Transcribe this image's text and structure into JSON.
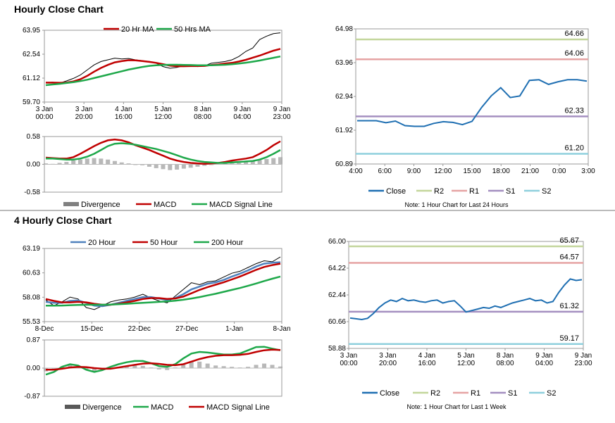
{
  "sections": {
    "hourly_title": "Hourly Close Chart",
    "four_hourly_title": "4 Hourly Close Chart"
  },
  "chart_data": [
    {
      "id": "hourly-price",
      "type": "line",
      "x_ticks": [
        "3 Jan\n00:00",
        "3 Jan\n20:00",
        "4 Jan\n16:00",
        "5 Jan\n12:00",
        "8 Jan\n08:00",
        "9 Jan\n04:00",
        "9 Jan\n23:00"
      ],
      "y_ticks": [
        "63.95",
        "62.54",
        "61.12",
        "59.70"
      ],
      "ylim": [
        59.7,
        63.95
      ],
      "legend": [
        "20 Hr MA",
        "50 Hrs MA"
      ],
      "series": [
        {
          "name": "Close",
          "color": "#000000",
          "values": [
            60.85,
            60.88,
            60.82,
            60.95,
            61.1,
            61.3,
            61.6,
            61.9,
            62.1,
            62.2,
            62.3,
            62.25,
            62.28,
            62.2,
            62.15,
            62.1,
            62.0,
            61.8,
            61.7,
            61.75,
            61.85,
            61.9,
            61.8,
            61.85,
            62.0,
            62.05,
            62.1,
            62.2,
            62.4,
            62.7,
            62.9,
            63.4,
            63.6,
            63.75,
            63.8
          ]
        },
        {
          "name": "20 Hr MA",
          "color": "#c00000",
          "values": [
            60.85,
            60.85,
            60.84,
            60.86,
            60.92,
            61.05,
            61.25,
            61.5,
            61.72,
            61.9,
            62.05,
            62.12,
            62.18,
            62.17,
            62.13,
            62.08,
            62.02,
            61.94,
            61.86,
            61.82,
            61.82,
            61.83,
            61.83,
            61.84,
            61.89,
            61.93,
            61.98,
            62.02,
            62.1,
            62.2,
            62.33,
            62.45,
            62.6,
            62.74,
            62.85
          ]
        },
        {
          "name": "50 Hrs MA",
          "color": "#1ea84a",
          "values": [
            60.7,
            60.74,
            60.78,
            60.83,
            60.88,
            60.94,
            61.02,
            61.12,
            61.22,
            61.32,
            61.42,
            61.52,
            61.62,
            61.7,
            61.78,
            61.84,
            61.88,
            61.9,
            61.91,
            61.91,
            61.9,
            61.89,
            61.88,
            61.88,
            61.88,
            61.89,
            61.91,
            61.94,
            61.98,
            62.03,
            62.09,
            62.16,
            62.24,
            62.32,
            62.4
          ]
        }
      ]
    },
    {
      "id": "hourly-macd",
      "type": "line",
      "y_ticks": [
        "0.58",
        "0.00",
        "-0.58"
      ],
      "ylim": [
        -0.58,
        0.58
      ],
      "legend": [
        "Divergence",
        "MACD",
        "MACD Signal Line"
      ],
      "divergence": [
        0.02,
        0.01,
        0.03,
        0.05,
        0.08,
        0.1,
        0.12,
        0.13,
        0.12,
        0.1,
        0.07,
        0.04,
        0.02,
        0.0,
        -0.02,
        -0.05,
        -0.08,
        -0.1,
        -0.12,
        -0.11,
        -0.09,
        -0.07,
        -0.05,
        -0.03,
        -0.01,
        0.01,
        0.02,
        0.02,
        0.03,
        0.05,
        0.07,
        0.09,
        0.11,
        0.13,
        0.15
      ],
      "series": [
        {
          "name": "MACD",
          "color": "#c00000",
          "values": [
            0.14,
            0.13,
            0.12,
            0.12,
            0.15,
            0.22,
            0.3,
            0.38,
            0.45,
            0.5,
            0.52,
            0.5,
            0.46,
            0.4,
            0.35,
            0.3,
            0.24,
            0.18,
            0.12,
            0.08,
            0.05,
            0.03,
            0.02,
            0.01,
            0.02,
            0.03,
            0.05,
            0.08,
            0.1,
            0.12,
            0.15,
            0.22,
            0.3,
            0.4,
            0.48
          ]
        },
        {
          "name": "MACD Signal Line",
          "color": "#1ea84a",
          "values": [
            0.12,
            0.12,
            0.11,
            0.1,
            0.1,
            0.12,
            0.16,
            0.22,
            0.3,
            0.38,
            0.43,
            0.44,
            0.43,
            0.41,
            0.38,
            0.35,
            0.32,
            0.28,
            0.24,
            0.19,
            0.14,
            0.1,
            0.07,
            0.05,
            0.04,
            0.03,
            0.03,
            0.04,
            0.05,
            0.06,
            0.07,
            0.1,
            0.15,
            0.22,
            0.3
          ]
        }
      ]
    },
    {
      "id": "hourly-levels",
      "type": "line",
      "x_ticks": [
        "4:00",
        "6:00",
        "9:00",
        "12:00",
        "15:00",
        "18:00",
        "21:00",
        "0:00",
        "3:00"
      ],
      "y_ticks": [
        "64.98",
        "63.96",
        "62.94",
        "61.92",
        "60.89"
      ],
      "ylim": [
        60.89,
        64.98
      ],
      "levels": [
        {
          "name": "R2",
          "value": 64.66,
          "label": "64.66",
          "color": "#c3d69b"
        },
        {
          "name": "R1",
          "value": 64.06,
          "label": "64.06",
          "color": "#e6a4a4"
        },
        {
          "name": "S1",
          "value": 62.33,
          "label": "62.33",
          "color": "#a48fc0"
        },
        {
          "name": "S2",
          "value": 61.2,
          "label": "61.20",
          "color": "#8fd0dd"
        }
      ],
      "series": [
        {
          "name": "Close",
          "color": "#1f6fb2",
          "values": [
            62.2,
            62.2,
            62.2,
            62.14,
            62.19,
            62.05,
            62.03,
            62.03,
            62.12,
            62.17,
            62.15,
            62.08,
            62.18,
            62.6,
            62.95,
            63.2,
            62.9,
            62.95,
            63.42,
            63.44,
            63.3,
            63.38,
            63.44,
            63.44,
            63.4
          ]
        }
      ],
      "legend": [
        "Close",
        "R2",
        "R1",
        "S1",
        "S2"
      ],
      "note": "Note: 1 Hour Chart for Last 24 Hours"
    },
    {
      "id": "four-hourly-price",
      "type": "line",
      "x_ticks": [
        "8-Dec",
        "15-Dec",
        "22-Dec",
        "27-Dec",
        "1-Jan",
        "8-Jan"
      ],
      "y_ticks": [
        "63.19",
        "60.63",
        "58.08",
        "55.53"
      ],
      "ylim": [
        55.53,
        63.19
      ],
      "legend": [
        "20 Hour",
        "50 Hour",
        "200 Hour"
      ],
      "series": [
        {
          "name": "Close",
          "color": "#000000",
          "values": [
            57.8,
            57.2,
            57.6,
            58.1,
            57.9,
            57.0,
            56.8,
            57.2,
            57.6,
            57.8,
            57.9,
            58.1,
            58.4,
            58.0,
            57.7,
            57.5,
            58.2,
            58.9,
            59.6,
            59.4,
            59.7,
            59.8,
            60.2,
            60.6,
            60.8,
            61.2,
            61.6,
            61.9,
            61.8,
            62.3
          ]
        },
        {
          "name": "20 Hour",
          "color": "#4f81bd",
          "values": [
            57.6,
            57.5,
            57.5,
            57.7,
            57.75,
            57.5,
            57.2,
            57.15,
            57.3,
            57.5,
            57.7,
            57.9,
            58.1,
            58.1,
            57.95,
            57.8,
            58.0,
            58.4,
            58.9,
            59.2,
            59.5,
            59.65,
            59.9,
            60.25,
            60.55,
            60.9,
            61.3,
            61.6,
            61.7,
            61.75
          ]
        },
        {
          "name": "50 Hour",
          "color": "#c00000",
          "values": [
            57.9,
            57.7,
            57.55,
            57.55,
            57.6,
            57.55,
            57.4,
            57.3,
            57.3,
            57.4,
            57.55,
            57.7,
            57.9,
            58.0,
            58.0,
            57.9,
            57.95,
            58.15,
            58.5,
            58.85,
            59.15,
            59.4,
            59.65,
            59.95,
            60.25,
            60.6,
            60.95,
            61.25,
            61.45,
            61.6
          ]
        },
        {
          "name": "200 Hour",
          "color": "#1ea84a",
          "values": [
            57.2,
            57.2,
            57.22,
            57.25,
            57.28,
            57.3,
            57.3,
            57.3,
            57.32,
            57.35,
            57.4,
            57.45,
            57.5,
            57.55,
            57.6,
            57.65,
            57.72,
            57.82,
            57.95,
            58.1,
            58.28,
            58.45,
            58.65,
            58.85,
            59.05,
            59.28,
            59.52,
            59.78,
            60.02,
            60.25
          ]
        }
      ]
    },
    {
      "id": "four-hourly-macd",
      "type": "line",
      "y_ticks": [
        "0.87",
        "0.00",
        "-0.87"
      ],
      "ylim": [
        -0.87,
        0.87
      ],
      "legend": [
        "Divergence",
        "MACD",
        "MACD Signal Line"
      ],
      "divergence": [
        -0.1,
        -0.05,
        0.05,
        0.1,
        0.08,
        -0.05,
        -0.1,
        -0.06,
        0.0,
        0.04,
        0.06,
        0.08,
        0.07,
        0.02,
        -0.04,
        -0.06,
        0.02,
        0.12,
        0.22,
        0.2,
        0.14,
        0.08,
        0.06,
        0.04,
        0.02,
        0.04,
        0.1,
        0.14,
        0.1,
        0.05
      ],
      "series": [
        {
          "name": "MACD",
          "color": "#1ea84a",
          "values": [
            -0.2,
            -0.12,
            0.04,
            0.12,
            0.08,
            -0.05,
            -0.12,
            -0.06,
            0.04,
            0.12,
            0.18,
            0.22,
            0.22,
            0.15,
            0.06,
            0.04,
            0.12,
            0.3,
            0.45,
            0.5,
            0.48,
            0.45,
            0.42,
            0.42,
            0.45,
            0.55,
            0.65,
            0.66,
            0.6,
            0.55
          ]
        },
        {
          "name": "MACD Signal Line",
          "color": "#c00000",
          "values": [
            -0.05,
            -0.05,
            -0.02,
            0.02,
            0.04,
            0.03,
            0.0,
            -0.02,
            -0.02,
            0.02,
            0.06,
            0.1,
            0.14,
            0.15,
            0.13,
            0.1,
            0.09,
            0.12,
            0.2,
            0.28,
            0.34,
            0.38,
            0.4,
            0.4,
            0.41,
            0.44,
            0.5,
            0.55,
            0.57,
            0.56
          ]
        }
      ]
    },
    {
      "id": "four-hourly-levels",
      "type": "line",
      "x_ticks": [
        "3 Jan\n00:00",
        "3 Jan\n20:00",
        "4 Jan\n16:00",
        "5 Jan\n12:00",
        "8 Jan\n08:00",
        "9 Jan\n04:00",
        "9 Jan\n23:00"
      ],
      "y_ticks": [
        "66.00",
        "64.22",
        "62.44",
        "60.66",
        "58.88"
      ],
      "ylim": [
        58.88,
        66.0
      ],
      "levels": [
        {
          "name": "R2",
          "value": 65.67,
          "label": "65.67",
          "color": "#c3d69b"
        },
        {
          "name": "R1",
          "value": 64.57,
          "label": "64.57",
          "color": "#e6a4a4"
        },
        {
          "name": "S1",
          "value": 61.32,
          "label": "61.32",
          "color": "#a48fc0"
        },
        {
          "name": "S2",
          "value": 59.17,
          "label": "59.17",
          "color": "#8fd0dd"
        }
      ],
      "series": [
        {
          "name": "Close",
          "color": "#1f6fb2",
          "values": [
            60.9,
            60.85,
            60.8,
            60.88,
            61.2,
            61.6,
            61.9,
            62.1,
            62.0,
            62.2,
            62.05,
            62.1,
            62.0,
            61.95,
            62.05,
            62.1,
            61.9,
            62.0,
            62.05,
            61.7,
            61.3,
            61.4,
            61.5,
            61.6,
            61.55,
            61.7,
            61.6,
            61.75,
            61.9,
            62.0,
            62.1,
            62.2,
            62.05,
            62.1,
            61.9,
            62.0,
            62.6,
            63.1,
            63.5,
            63.4,
            63.45
          ]
        }
      ],
      "legend": [
        "Close",
        "R2",
        "R1",
        "S1",
        "S2"
      ],
      "note": "Note: 1 Hour Chart for Last 1 Week"
    }
  ]
}
